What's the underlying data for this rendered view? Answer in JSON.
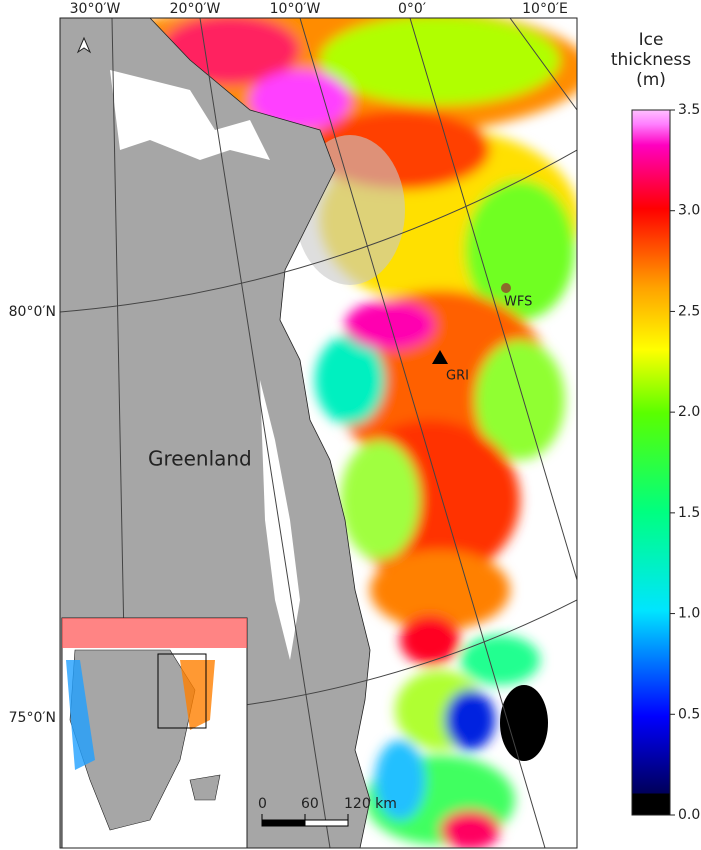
{
  "map": {
    "longitude_labels": [
      "30°0′W",
      "20°0′W",
      "10°0′W",
      "0°0′",
      "10°0′E"
    ],
    "latitude_labels": [
      "80°0′N",
      "75°0′N"
    ],
    "places": [
      "Greenland",
      "WFS",
      "GRI"
    ],
    "scale_bar": {
      "ticks": [
        0,
        60,
        {
          "value": 120,
          "label": "120 km"
        }
      ]
    }
  },
  "colorbar": {
    "title": [
      "Ice",
      "thickness",
      "(m)"
    ],
    "lim": [
      0,
      3.5
    ],
    "ticks": [
      {
        "value": 0,
        "label": "0.0"
      },
      0.5,
      {
        "value": 1,
        "label": "1.0"
      },
      1.5,
      {
        "value": 2,
        "label": "2.0"
      },
      2.5,
      {
        "value": 3,
        "label": "3.0"
      },
      3.5
    ]
  }
}
